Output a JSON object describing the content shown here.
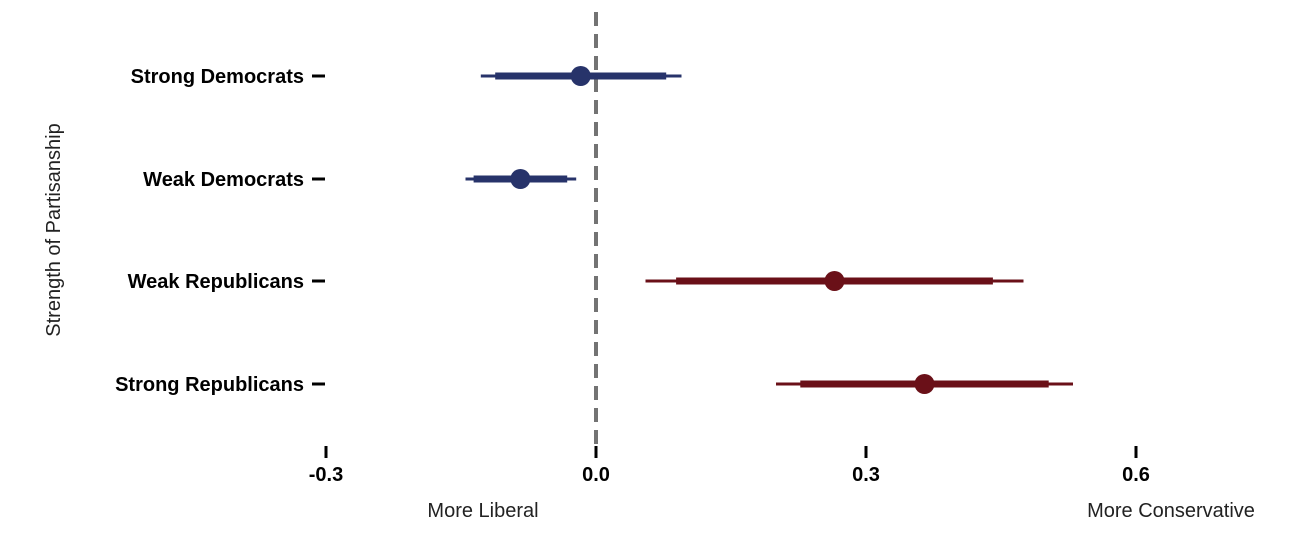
{
  "chart_data": {
    "type": "coefficient-plot",
    "ylabel": "Strength of Partisanship",
    "x_ticks": [
      -0.3,
      0.0,
      0.3,
      0.6
    ],
    "x_tick_labels": [
      "-0.3",
      "0.0",
      "0.3",
      "0.6"
    ],
    "xlim": [
      -0.33,
      0.78
    ],
    "reference_line": 0.0,
    "direction_labels": {
      "left": "More Liberal",
      "right": "More Conservative"
    },
    "colors": {
      "democrat": "#27336a",
      "republican": "#6a1018",
      "reference": "#737373"
    },
    "series": [
      {
        "category": "Strong Democrats",
        "party": "democrat",
        "estimate": -0.017,
        "ci_inner": [
          -0.112,
          0.078
        ],
        "ci_outer": [
          -0.128,
          0.095
        ]
      },
      {
        "category": "Weak Democrats",
        "party": "democrat",
        "estimate": -0.084,
        "ci_inner": [
          -0.136,
          -0.032
        ],
        "ci_outer": [
          -0.145,
          -0.022
        ]
      },
      {
        "category": "Weak Republicans",
        "party": "republican",
        "estimate": 0.265,
        "ci_inner": [
          0.089,
          0.441
        ],
        "ci_outer": [
          0.055,
          0.475
        ]
      },
      {
        "category": "Strong Republicans",
        "party": "republican",
        "estimate": 0.365,
        "ci_inner": [
          0.227,
          0.503
        ],
        "ci_outer": [
          0.2,
          0.53
        ]
      }
    ]
  }
}
